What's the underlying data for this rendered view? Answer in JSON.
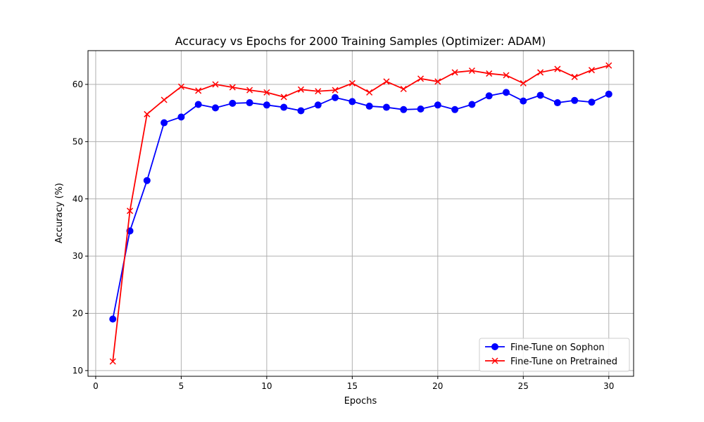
{
  "chart_data": {
    "type": "line",
    "title": "Accuracy vs Epochs for 2000 Training Samples (Optimizer: ADAM)",
    "xlabel": "Epochs",
    "ylabel": "Accuracy (%)",
    "xlim": [
      -0.45,
      31.45
    ],
    "ylim": [
      9.0,
      65.9
    ],
    "xticks": [
      0,
      5,
      10,
      15,
      20,
      25,
      30
    ],
    "yticks": [
      10,
      20,
      30,
      40,
      50,
      60
    ],
    "grid": true,
    "legend_position": "lower-right",
    "x": [
      1,
      2,
      3,
      4,
      5,
      6,
      7,
      8,
      9,
      10,
      11,
      12,
      13,
      14,
      15,
      16,
      17,
      18,
      19,
      20,
      21,
      22,
      23,
      24,
      25,
      26,
      27,
      28,
      29,
      30
    ],
    "series": [
      {
        "name": "Fine-Tune on Sophon",
        "color": "#0000ff",
        "marker": "circle",
        "values": [
          19.0,
          34.4,
          43.2,
          53.3,
          54.3,
          56.5,
          55.9,
          56.7,
          56.8,
          56.4,
          56.0,
          55.4,
          56.4,
          57.7,
          57.0,
          56.2,
          56.0,
          55.6,
          55.7,
          56.4,
          55.6,
          56.5,
          58.0,
          58.6,
          57.1,
          58.1,
          56.8,
          57.2,
          56.9,
          58.3
        ]
      },
      {
        "name": "Fine-Tune on Pretrained",
        "color": "#ff0000",
        "marker": "x",
        "values": [
          11.6,
          37.9,
          54.8,
          57.3,
          59.6,
          58.9,
          60.0,
          59.5,
          59.0,
          58.6,
          57.8,
          59.1,
          58.8,
          59.0,
          60.2,
          58.6,
          60.5,
          59.2,
          61.0,
          60.5,
          62.1,
          62.4,
          61.9,
          61.6,
          60.2,
          62.1,
          62.7,
          61.3,
          62.5,
          63.3
        ]
      }
    ]
  }
}
